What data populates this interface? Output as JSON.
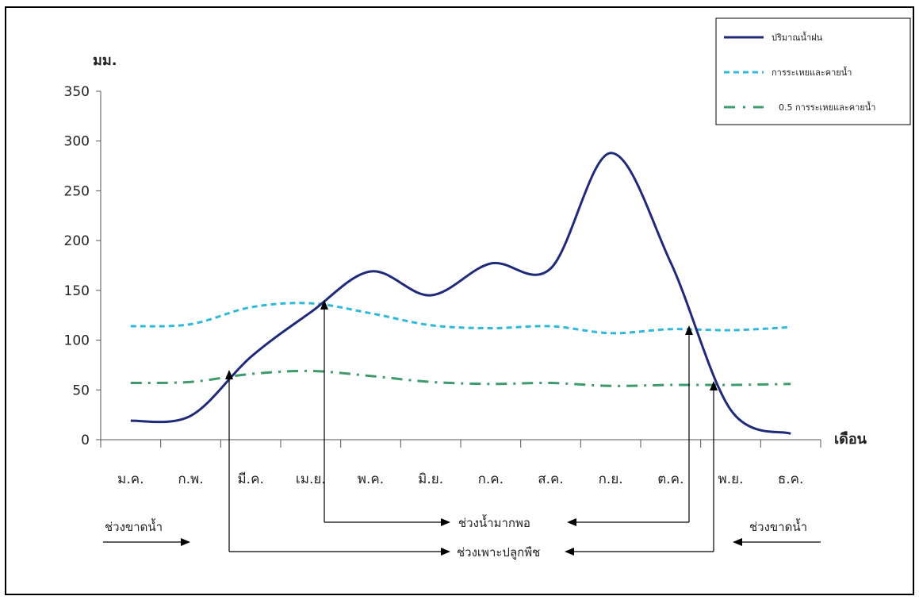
{
  "chart_data": {
    "type": "line",
    "ylabel": "มม.",
    "xlabel": "เดือน",
    "ylim": [
      0,
      350
    ],
    "yticks": [
      0,
      50,
      100,
      150,
      200,
      250,
      300,
      350
    ],
    "categories": [
      "ม.ค.",
      "ก.พ.",
      "มี.ค.",
      "เม.ย.",
      "พ.ค.",
      "มิ.ย.",
      "ก.ค.",
      "ส.ค.",
      "ก.ย.",
      "ต.ค.",
      "พ.ย.",
      "ธ.ค."
    ],
    "grid": false,
    "legend_position": "top-right",
    "series": [
      {
        "name": "ปริมาณน้ำฝน",
        "color": "#1f2a7a",
        "style": "solid",
        "values": [
          19,
          24,
          83,
          128,
          169,
          145,
          177,
          172,
          288,
          178,
          30,
          6
        ]
      },
      {
        "name": "การระเหยและคายน้ำ",
        "color": "#2fb8d8",
        "style": "dashed",
        "values": [
          114,
          116,
          133,
          137,
          127,
          115,
          112,
          114,
          107,
          111,
          110,
          113
        ]
      },
      {
        "name": "0.5 การระเหยและคายน้ำ",
        "color": "#3f9a6c",
        "style": "dashdot",
        "values": [
          57,
          58,
          66,
          69,
          64,
          58,
          56,
          57,
          54,
          55,
          55,
          56
        ]
      }
    ],
    "annotations": {
      "deficit_left": "ช่วงขาดน้ำ",
      "deficit_right": "ช่วงขาดน้ำ",
      "surplus": "ช่วงน้ำมากพอ",
      "growing": "ช่วงเพาะปลูกพืช"
    }
  }
}
